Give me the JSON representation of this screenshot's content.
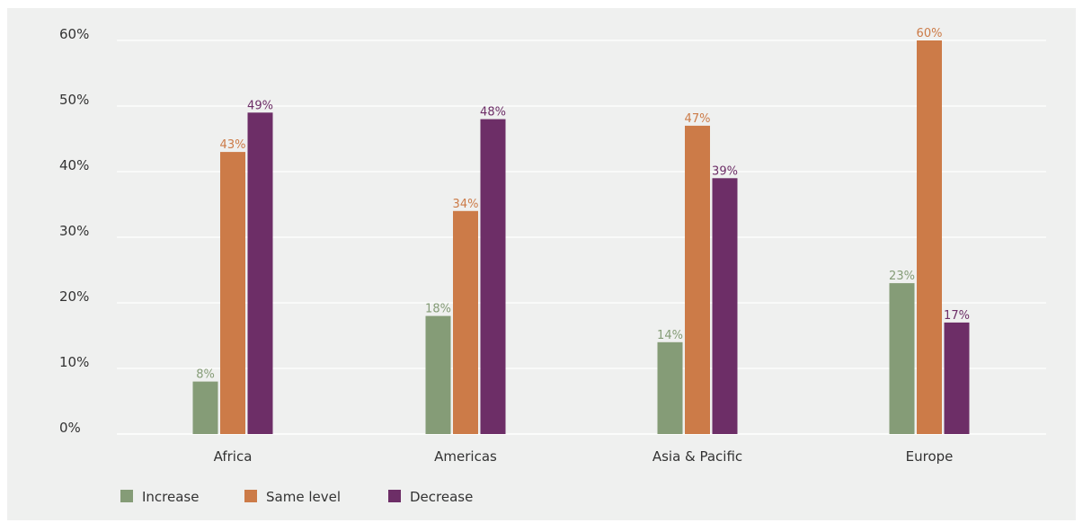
{
  "chart_data": {
    "type": "bar",
    "categories": [
      "Africa",
      "Americas",
      "Asia & Pacific",
      "Europe"
    ],
    "series": [
      {
        "name": "Increase",
        "color": "#859c77",
        "values": [
          8,
          18,
          14,
          23
        ]
      },
      {
        "name": "Same level",
        "color": "#cc7b48",
        "values": [
          43,
          34,
          47,
          60
        ]
      },
      {
        "name": "Decrease",
        "color": "#6d2e67",
        "values": [
          49,
          48,
          39,
          17
        ]
      }
    ],
    "ylim": [
      0,
      60
    ],
    "yticks": [
      0,
      10,
      20,
      30,
      40,
      50,
      60
    ],
    "ytick_labels": [
      "0%",
      "10%",
      "20%",
      "30%",
      "40%",
      "50%",
      "60%"
    ],
    "data_labels": [
      [
        "8%",
        "18%",
        "14%",
        "23%"
      ],
      [
        "43%",
        "34%",
        "47%",
        "60%"
      ],
      [
        "49%",
        "48%",
        "39%",
        "17%"
      ]
    ],
    "label_colors": [
      "#859c77",
      "#cc7b48",
      "#6d2e67"
    ],
    "grid": true,
    "legend": "bottom-left",
    "background": "#eff0ef"
  }
}
